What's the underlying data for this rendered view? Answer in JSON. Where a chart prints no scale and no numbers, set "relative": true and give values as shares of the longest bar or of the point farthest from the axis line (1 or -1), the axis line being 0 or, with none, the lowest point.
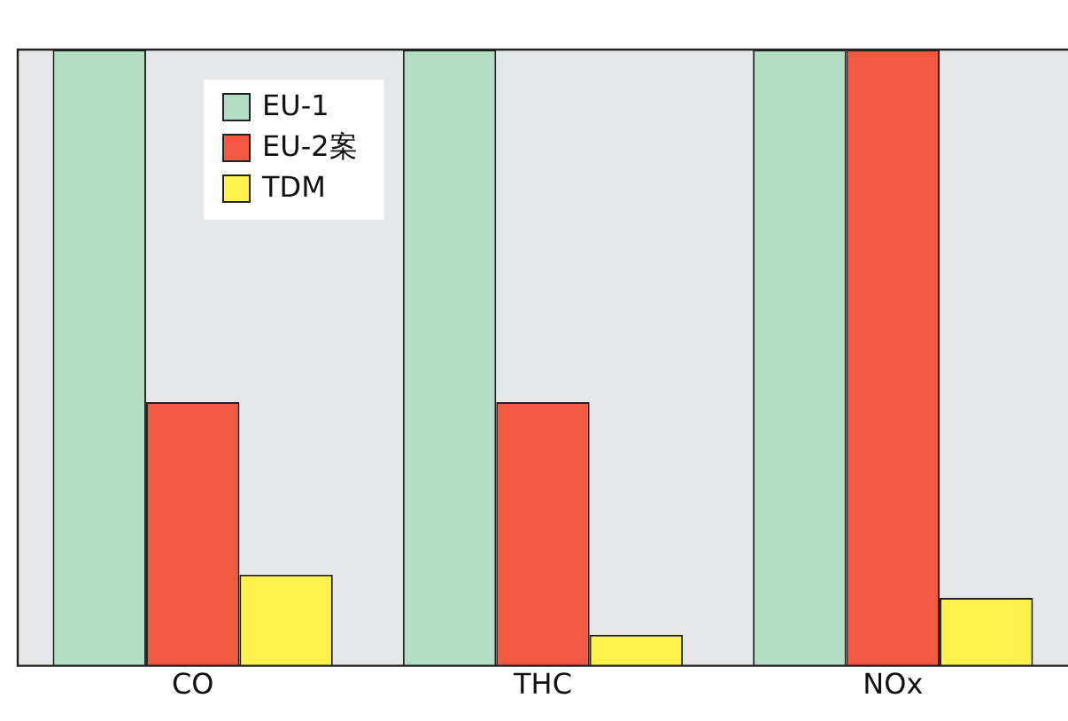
{
  "chart_data": {
    "type": "bar",
    "relative": true,
    "categories": [
      "CO",
      "THC",
      "NOx"
    ],
    "series": [
      {
        "name": "EU-1",
        "color": "#b3dec3",
        "values": [
          1,
          1,
          1
        ]
      },
      {
        "name": "EU-2案",
        "color": "#f15a40",
        "values": [
          0.428,
          0.428,
          1
        ]
      },
      {
        "name": "TDM",
        "color": "#fff24c",
        "values": [
          0.148,
          0.05,
          0.11
        ]
      }
    ],
    "legend": "top left",
    "grid": false
  }
}
